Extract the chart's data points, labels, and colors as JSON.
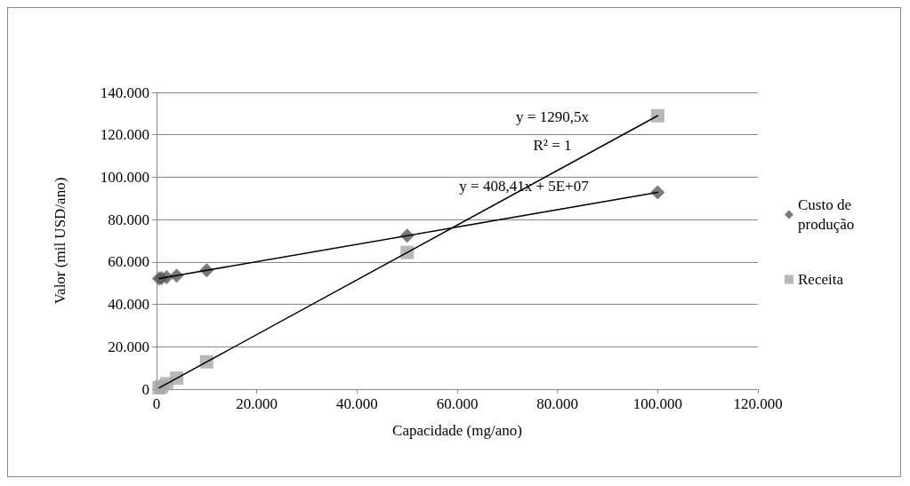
{
  "chart_data": {
    "type": "scatter",
    "xlabel": "Capacidade (mg/ano)",
    "ylabel": "Valor (mil USD/ano)",
    "xlim": [
      0,
      120000
    ],
    "xticks": [
      {
        "value": 0,
        "label": "0"
      },
      {
        "value": 20000,
        "label": "20.000"
      },
      {
        "value": 40000,
        "label": "40.000"
      },
      {
        "value": 60000,
        "label": "60.000"
      },
      {
        "value": 80000,
        "label": "80.000"
      },
      {
        "value": 100000,
        "label": "100.000"
      },
      {
        "value": 120000,
        "label": "120.000"
      }
    ],
    "ylim": [
      0,
      140000
    ],
    "yticks": [
      {
        "value": 0,
        "label": "0"
      },
      {
        "value": 20000,
        "label": "20.000"
      },
      {
        "value": 40000,
        "label": "40.000"
      },
      {
        "value": 60000,
        "label": "60.000"
      },
      {
        "value": 80000,
        "label": "80.000"
      },
      {
        "value": 100000,
        "label": "100.000"
      },
      {
        "value": 120000,
        "label": "120.000"
      },
      {
        "value": 140000,
        "label": "140.000"
      }
    ],
    "grid": "y",
    "legend": "right",
    "series": [
      {
        "name": "Custo de produção",
        "color": "#595959",
        "marker": "diamond",
        "x": [
          500,
          1000,
          2000,
          4000,
          10000,
          50000,
          100000
        ],
        "values": [
          52200,
          52400,
          52800,
          53600,
          56100,
          72400,
          92800
        ]
      },
      {
        "name": "Receita",
        "color": "#a6a6a6",
        "marker": "square",
        "x": [
          500,
          1000,
          2000,
          4000,
          10000,
          50000,
          100000
        ],
        "values": [
          600,
          1300,
          2600,
          5200,
          12900,
          64500,
          129000
        ]
      },
      {
        "type": "line",
        "color": "#000000",
        "marker": "none",
        "x": [
          500,
          100000
        ],
        "values": [
          52200,
          92800
        ]
      },
      {
        "type": "line",
        "color": "#000000",
        "marker": "none",
        "x": [
          500,
          100000
        ],
        "values": [
          600,
          129000
        ]
      }
    ],
    "annotations": [
      "y = 1290,5x",
      "R² = 1",
      "y = 408,41x + 5E+07"
    ]
  }
}
